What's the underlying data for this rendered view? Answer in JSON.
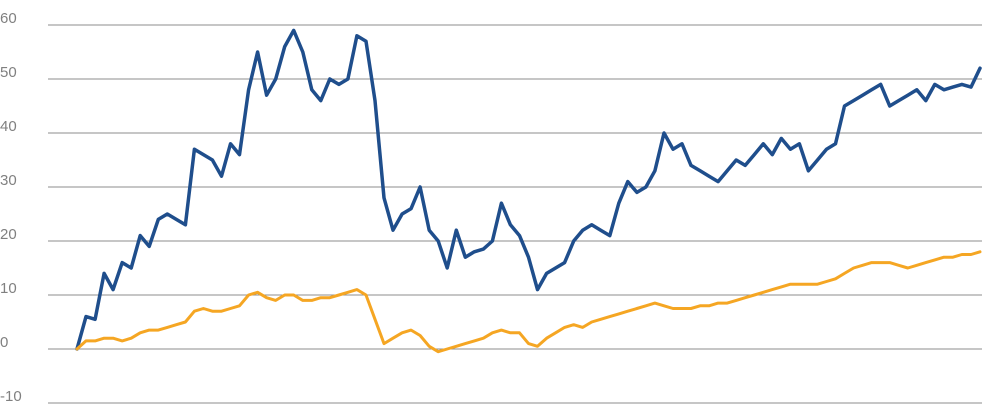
{
  "chart_data": {
    "type": "line",
    "title": "",
    "xlabel": "",
    "ylabel": "",
    "ylim": [
      -10,
      60
    ],
    "yticks": [
      {
        "value": 60,
        "label": "60"
      },
      {
        "value": 50,
        "label": "50"
      },
      {
        "value": 40,
        "label": "40"
      },
      {
        "value": 30,
        "label": "30"
      },
      {
        "value": 20,
        "label": "20"
      },
      {
        "value": 10,
        "label": "10"
      },
      {
        "value": 0,
        "label": "0"
      },
      {
        "value": -10,
        "label": "-10"
      }
    ],
    "grid": true,
    "legend": "none",
    "xlim": [
      0,
      100
    ],
    "series": [
      {
        "color": "#1f4e8c",
        "x": [
          0,
          1.0,
          2.0,
          3.0,
          4.0,
          5.0,
          6.0,
          7.0,
          8.0,
          9.0,
          10.0,
          11.0,
          12.0,
          13.0,
          14.0,
          15.0,
          16.0,
          17.0,
          18.0,
          19.0,
          20.0,
          21.0,
          22.0,
          23.0,
          24.0,
          25.0,
          26.0,
          27.0,
          28.0,
          29.0,
          30.0,
          31.0,
          32.0,
          33.0,
          34.0,
          35.0,
          36.0,
          37.0,
          38.0,
          39.0,
          40.0,
          41.0,
          42.0,
          43.0,
          44.0,
          45.0,
          46.0,
          47.0,
          48.0,
          49.0,
          50.0,
          51.0,
          52.0,
          53.0,
          54.0,
          55.0,
          56.0,
          57.0,
          58.0,
          59.0,
          60.0,
          61.0,
          62.0,
          63.0,
          64.0,
          65.0,
          66.0,
          67.0,
          68.0,
          69.0,
          70.0,
          71.0,
          72.0,
          73.0,
          74.0,
          75.0,
          76.0,
          77.0,
          78.0,
          79.0,
          80.0,
          81.0,
          82.0,
          83.0,
          84.0,
          85.0,
          86.0,
          87.0,
          88.0,
          89.0,
          90.0,
          91.0,
          92.0,
          93.0,
          94.0,
          95.0,
          96.0,
          97.0,
          98.0,
          99.0,
          100
        ],
        "values": [
          0.0,
          6.0,
          5.5,
          14.0,
          11.0,
          16.0,
          15.0,
          21.0,
          19.0,
          24.0,
          25.0,
          24.0,
          23.0,
          37.0,
          36.0,
          35.0,
          32.0,
          38.0,
          36.0,
          48.0,
          55.0,
          47.0,
          50.0,
          56.0,
          59.0,
          55.0,
          48.0,
          46.0,
          50.0,
          49.0,
          50.0,
          58.0,
          57.0,
          46.0,
          28.0,
          22.0,
          25.0,
          26.0,
          30.0,
          22.0,
          20.0,
          15.0,
          22.0,
          17.0,
          18.0,
          18.5,
          20.0,
          27.0,
          23.0,
          21.0,
          17.0,
          11.0,
          14.0,
          15.0,
          16.0,
          20.0,
          22.0,
          23.0,
          22.0,
          21.0,
          27.0,
          31.0,
          29.0,
          30.0,
          33.0,
          40.0,
          37.0,
          38.0,
          34.0,
          33.0,
          32.0,
          31.0,
          33.0,
          35.0,
          34.0,
          36.0,
          38.0,
          36.0,
          39.0,
          37.0,
          38.0,
          33.0,
          35.0,
          37.0,
          38.0,
          45.0,
          46.0,
          47.0,
          48.0,
          49.0,
          45.0,
          46.0,
          47.0,
          48.0,
          46.0,
          49.0,
          48.0,
          48.5,
          49.0,
          48.5,
          52.0
        ]
      },
      {
        "color": "#f5a623",
        "x": [
          0,
          1.0,
          2.0,
          3.0,
          4.0,
          5.0,
          6.0,
          7.0,
          8.0,
          9.0,
          10.0,
          11.0,
          12.0,
          13.0,
          14.0,
          15.0,
          16.0,
          17.0,
          18.0,
          19.0,
          20.0,
          21.0,
          22.0,
          23.0,
          24.0,
          25.0,
          26.0,
          27.0,
          28.0,
          29.0,
          30.0,
          31.0,
          32.0,
          33.0,
          34.0,
          35.0,
          36.0,
          37.0,
          38.0,
          39.0,
          40.0,
          41.0,
          42.0,
          43.0,
          44.0,
          45.0,
          46.0,
          47.0,
          48.0,
          49.0,
          50.0,
          51.0,
          52.0,
          53.0,
          54.0,
          55.0,
          56.0,
          57.0,
          58.0,
          59.0,
          60.0,
          61.0,
          62.0,
          63.0,
          64.0,
          65.0,
          66.0,
          67.0,
          68.0,
          69.0,
          70.0,
          71.0,
          72.0,
          73.0,
          74.0,
          75.0,
          76.0,
          77.0,
          78.0,
          79.0,
          80.0,
          81.0,
          82.0,
          83.0,
          84.0,
          85.0,
          86.0,
          87.0,
          88.0,
          89.0,
          90.0,
          91.0,
          92.0,
          93.0,
          94.0,
          95.0,
          96.0,
          97.0,
          98.0,
          99.0,
          100
        ],
        "values": [
          0.0,
          1.5,
          1.5,
          2.0,
          2.0,
          1.5,
          2.0,
          3.0,
          3.5,
          3.5,
          4.0,
          4.5,
          5.0,
          7.0,
          7.5,
          7.0,
          7.0,
          7.5,
          8.0,
          10.0,
          10.5,
          9.5,
          9.0,
          10.0,
          10.0,
          9.0,
          9.0,
          9.5,
          9.5,
          10.0,
          10.5,
          11.0,
          10.0,
          5.5,
          1.0,
          2.0,
          3.0,
          3.5,
          2.5,
          0.5,
          -0.5,
          0.0,
          0.5,
          1.0,
          1.5,
          2.0,
          3.0,
          3.5,
          3.0,
          3.0,
          1.0,
          0.5,
          2.0,
          3.0,
          4.0,
          4.5,
          4.0,
          5.0,
          5.5,
          6.0,
          6.5,
          7.0,
          7.5,
          8.0,
          8.5,
          8.0,
          7.5,
          7.5,
          7.5,
          8.0,
          8.0,
          8.5,
          8.5,
          9.0,
          9.5,
          10.0,
          10.5,
          11.0,
          11.5,
          12.0,
          12.0,
          12.0,
          12.0,
          12.5,
          13.0,
          14.0,
          15.0,
          15.5,
          16.0,
          16.0,
          16.0,
          15.5,
          15.0,
          15.5,
          16.0,
          16.5,
          17.0,
          17.0,
          17.5,
          17.5,
          18.0
        ]
      }
    ]
  }
}
